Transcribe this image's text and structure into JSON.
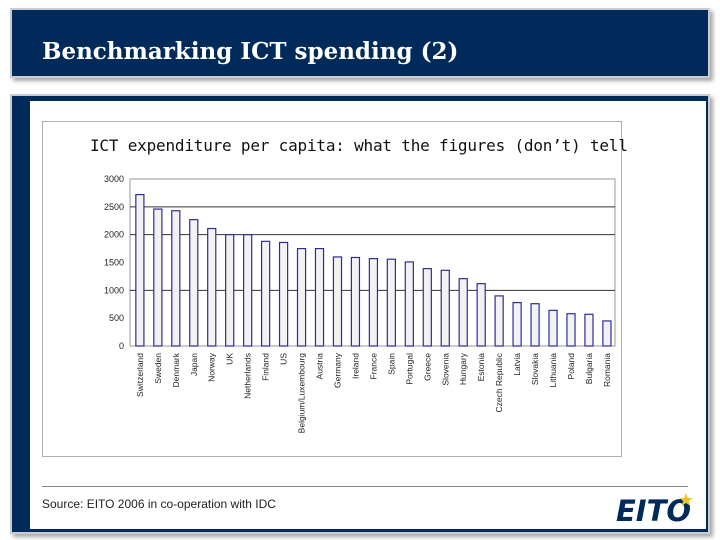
{
  "slide": {
    "title": "Benchmarking ICT spending (2)",
    "source": "Source: EITO 2006 in co-operation with IDC",
    "logo_text": "EITO"
  },
  "colors": {
    "navy": "#002a5a",
    "bar_fill": "#f2f2f2",
    "bar_stroke": "#2d2d9a",
    "logo_star": "#f0c020"
  },
  "chart_data": {
    "type": "bar",
    "title": "ICT expenditure per capita: what the figures (don’t) tell",
    "xlabel": "",
    "ylabel": "",
    "ylim": [
      0,
      3000
    ],
    "yticks": [
      0,
      500,
      1000,
      1500,
      2000,
      2500,
      3000
    ],
    "grid": "horizontal",
    "legend": "none",
    "categories": [
      "Switzerland",
      "Sweden",
      "Denmark",
      "Japan",
      "Norway",
      "UK",
      "Netherlands",
      "Finland",
      "US",
      "Belgium/Luxembourg",
      "Austria",
      "Germany",
      "Ireland",
      "France",
      "Spain",
      "Portugal",
      "Greece",
      "Slovenia",
      "Hungary",
      "Estonia",
      "Czech Republic",
      "Latvia",
      "Slovakia",
      "Lithuania",
      "Poland",
      "Bulgaria",
      "Romania"
    ],
    "values": [
      2720,
      2460,
      2430,
      2270,
      2110,
      2000,
      2000,
      1880,
      1860,
      1750,
      1750,
      1600,
      1590,
      1570,
      1560,
      1510,
      1390,
      1360,
      1210,
      1120,
      900,
      780,
      760,
      640,
      580,
      570,
      450
    ]
  }
}
